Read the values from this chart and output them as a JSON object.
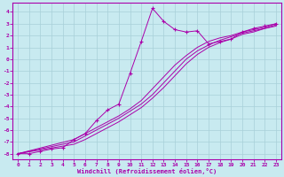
{
  "xlabel": "Windchill (Refroidissement éolien,°C)",
  "background_color": "#c8eaf0",
  "grid_color": "#a8d0d8",
  "line_color": "#aa00aa",
  "xlim": [
    -0.5,
    23.5
  ],
  "ylim": [
    -8.5,
    4.8
  ],
  "xticks": [
    0,
    1,
    2,
    3,
    4,
    5,
    6,
    7,
    8,
    9,
    10,
    11,
    12,
    13,
    14,
    15,
    16,
    17,
    18,
    19,
    20,
    21,
    22,
    23
  ],
  "yticks": [
    -8,
    -7,
    -6,
    -5,
    -4,
    -3,
    -2,
    -1,
    0,
    1,
    2,
    3,
    4
  ],
  "series_marked": {
    "x": [
      0,
      1,
      2,
      3,
      4,
      5,
      6,
      7,
      8,
      9,
      10,
      11,
      12,
      13,
      14,
      15,
      16,
      17,
      18,
      19,
      20,
      21,
      22,
      23
    ],
    "y": [
      -8.0,
      -8.0,
      -7.8,
      -7.6,
      -7.5,
      -6.8,
      -6.3,
      -5.2,
      -4.3,
      -3.8,
      -1.2,
      1.5,
      4.3,
      3.2,
      2.5,
      2.3,
      2.4,
      1.3,
      1.5,
      1.7,
      2.3,
      2.6,
      2.8,
      3.0
    ]
  },
  "series_straight": [
    {
      "x": [
        0,
        5,
        6,
        7,
        8,
        9,
        10,
        11,
        12,
        13,
        14,
        15,
        16,
        17,
        18,
        19,
        20,
        21,
        22,
        23
      ],
      "y": [
        -8.0,
        -6.8,
        -6.3,
        -5.8,
        -5.3,
        -4.8,
        -4.2,
        -3.5,
        -2.5,
        -1.5,
        -0.5,
        0.3,
        1.0,
        1.5,
        1.8,
        2.0,
        2.3,
        2.5,
        2.7,
        3.0
      ]
    },
    {
      "x": [
        0,
        5,
        6,
        7,
        8,
        9,
        10,
        11,
        12,
        13,
        14,
        15,
        16,
        17,
        18,
        19,
        20,
        21,
        22,
        23
      ],
      "y": [
        -8.0,
        -7.0,
        -6.5,
        -6.0,
        -5.5,
        -5.0,
        -4.4,
        -3.8,
        -3.0,
        -2.0,
        -1.0,
        0.0,
        0.7,
        1.2,
        1.6,
        1.9,
        2.2,
        2.4,
        2.6,
        2.9
      ]
    },
    {
      "x": [
        0,
        5,
        6,
        7,
        8,
        9,
        10,
        11,
        12,
        13,
        14,
        15,
        16,
        17,
        18,
        19,
        20,
        21,
        22,
        23
      ],
      "y": [
        -8.0,
        -7.2,
        -6.8,
        -6.3,
        -5.8,
        -5.3,
        -4.7,
        -4.1,
        -3.3,
        -2.4,
        -1.4,
        -0.4,
        0.4,
        1.0,
        1.4,
        1.7,
        2.1,
        2.3,
        2.6,
        2.8
      ]
    }
  ]
}
